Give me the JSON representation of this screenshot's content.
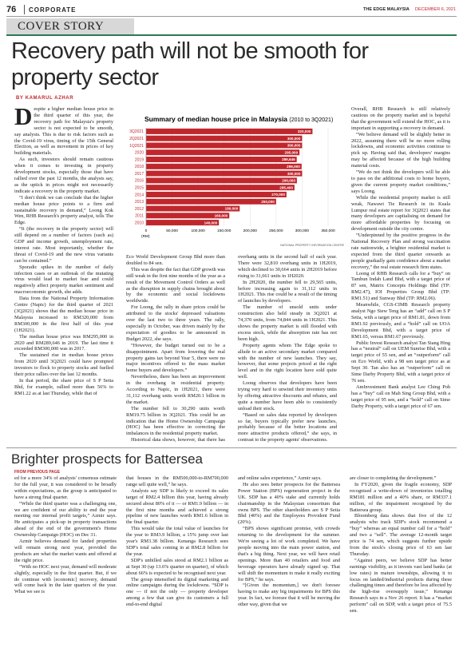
{
  "header": {
    "page_number": "76",
    "section": "CORPORATE",
    "publication": "THE EDGE MALAYSIA",
    "date": "DECEMBER 6, 2021"
  },
  "article": {
    "kicker": "COVER STORY",
    "title": "Recovery path will not be smooth for property sector",
    "byline": "BY KAMARUL AZHAR",
    "columns": [
      [
        "Despite a higher median house price in the third quarter of this year, the recovery path for Malaysia's property sector is not expected to be smooth, say analysts. This is due to risk factors such as the Covid-19 virus, timing of the 15th General Election, as well as movement in prices of key building materials.",
        "As such, investors should remain cautious when it comes to investing in property development stocks, especially those that have rallied over the past 12 months, the analysts say, as the uptick in prices might not necessarily indicate a recovery in the property market.",
        "“I don't think we can conclude that the higher median house price points to a firm and sustainable recovery in demand,” Loong Kok Wen, RHB Research's property analyst, tells The Edge.",
        "“It (the recovery in the property sector) will still depend on a number of factors (such as) GDP and income growth, unemployment rate, interest rate. Most importantly, whether the threat of Covid-19 and the new virus variants can be contained.”",
        "Sporadic spikes in the number of daily infection cases or an outbreak of the mutating virus would lead to market fear and could negatively affect property market sentiment and macroeconomic growth, she adds.",
        "Data from the National Property Information Centre (Napic) for the third quarter of 2021 (3Q2021) shows that the median house price in Malaysia increased to RM320,000 from RM300,000 in the first half of this year (1H2021).",
        "The median house price was RM295,000 in 2020 and RM289,646 in 2019. The last time it exceeded RM300,000 was in 2017.",
        "The sustained rise in median house prices from 2020 until 3Q2021 could have prompted investors to flock to property stocks and fuelled their price rallies over the last 12 months.",
        "In that period, the share price of S P Setia Bhd, for example, rallied more than 56% to RM1.22 as at last Thursday, while that of"
      ],
      [
        "Eco World Development Group Bhd more than doubled to 84 sen.",
        "This was despite the fact that GDP growth was still weak in the first nine months of the year as a result of the Movement Control Orders as well as the disruption in supply chains brought about by the economic and social lockdowns worldwide.",
        "For Loong, the rally in share prices could be attributed to the stocks' depressed valuations over the last two to three years. The rally, especially in October, was driven mainly by the expectation of goodies to be announced in Budget 2022, she says.",
        "“However, the budget turned out to be a disappointment. Apart from lowering the real property gains tax beyond Year 5, there were no major incentives offered to the mass market home buyers and developers.”",
        "Nevertheless, there has been an improvement in the overhang in residential property. According to Napic, in 1H2021, there were 31,112 overhang units worth RM20.1 billion in the market.",
        "The number fell to 30,290 units worth RM19.75 billion in 3Q2021. This could be an indication that the Home Ownership Campaign (HOC) has been effective in correcting the imbalances in the residential property market.",
        "Historical data shows, however, that there has been a decline in the number of"
      ],
      [
        "overhang units in the second half of each year. There were 32,810 overhang units in 1H2019, which declined to 30,664 units in 2H2019 before rising to 31,661 units in 1H2020.",
        "In 2H2020, the number fell to 29,565 units, before increasing again to 31,112 units in 1H2021. This rise could be a result of the timing of launches by developers.",
        "The number of unsold units under construction also held steady in 3Q2021 at 74,370 units, from 74,844 units in 1H2021. This shows the property market is still flooded with excess stock, while the absorption rate has not been high.",
        "Property agents whom The Edge spoke to allude to an active secondary market compared with the number of new launches. They say, however, that some projects priced at the right level and in the right location have sold quite well.",
        "Loong observes that developers have been trying very hard to unwind their inventory units by offering attractive discounts and rebates, and quite a number have been able to consistently unload their stock.",
        "“Based on sales data reported by developers so far, buyers typically prefer new launches, probably because of the better locations and more attractive products offered,” she says, in contrast to the property agents' observations."
      ],
      [
        "Overall, RHB Research is still relatively cautious on the property market and is hopeful that the government will extend the HOC, as it is important in supporting a recovery in demand.",
        "“We believe demand will be slightly better in 2022, assuming there will be no more rolling lockdowns, and economic activities continue to pick up. Having said that, developers' margins may be affected because of the high building material costs.",
        "“We do not think the developers will be able to pass on the additional costs to home buyers, given the current property market conditions,” says Loong.",
        "While the residential property market is still weak, Nawawi Tie Research in its Kuala Lumpur real estate report for 3Q2021 states that many developers are capitalising on demand for more affordable properties by focusing on development outside the city centre.",
        "“Underpinned by the positive progress in the National Recovery Plan and strong vaccination rate nationwide, a brighter residential market is expected from the third quarter onwards as people gradually gain confidence about a market recovery,” the real estate research firm states.",
        "Loong of RHB Research calls for a “buy” on Tambun Indah Land Bhd, with a target price of 87 sen, Matrix Concepts Holdings Bhd (TP: RM2.47), IOI Properties Group Bhd (TP: RM1.51) and Sunway Bhd (TP: RM2.06).",
        "Meanwhile, CGS-CIMB Research property analyst Ngo Siew Teng has an “add” call on S P Setia, with a target price of RM1.81, down from RM1.92 previously, and a “hold” call on UOA Development Bhd, with a target price of RM1.65, versus RM1.67 previously.",
        "Public Invest Research analyst Tan Siang Hing has a “neutral” call on UEM Sunrise Bhd, with a target price of 55 sen, and an “outperform” call on Eco World, with a 98 sen target price as at Sept 30. Tan also has an “outperform” call on Sime Darby Property Bhd, with a target price of 76 sen.",
        "AmInvestment Bank analyst Lee Ching Poh has a “buy” call on Mah Sing Group Bhd, with a target price of 95 sen, and a “hold” call on Sime Darby Property, with a target price of 67 sen."
      ]
    ]
  },
  "chart": {
    "type": "bar",
    "title": "Summary of median house price in Malaysia",
    "subtitle": "(2010 to 3Q2021)",
    "color": "#c0272d",
    "categories": [
      "3Q2021",
      "2Q2021",
      "1Q2021",
      "2020",
      "2019",
      "2018",
      "2017",
      "2016",
      "2015",
      "2014",
      "2013",
      "2012",
      "2011",
      "2010"
    ],
    "values": [
      320000,
      300000,
      300000,
      295000,
      289646,
      299000,
      300000,
      290000,
      285400,
      270000,
      250000,
      180000,
      160000,
      140000
    ],
    "value_labels": [
      "320,000",
      "300,000",
      "300,000",
      "295,000",
      "289,646",
      "299,000",
      "300,000",
      "290,000",
      "285,400",
      "270,000",
      "250,000",
      "180,000",
      "160,000",
      "140,000"
    ],
    "xlim": [
      0,
      350000
    ],
    "xticks": [
      0,
      {
        "value": 50000,
        "label": "50,000"
      },
      {
        "value": 100000,
        "label": "100,000"
      },
      {
        "value": 150000,
        "label": "150,000"
      },
      {
        "value": 200000,
        "label": "200,000"
      },
      {
        "value": 250000,
        "label": "250,000"
      },
      {
        "value": 300000,
        "label": "300,000"
      },
      {
        "value": 350000,
        "label": "350,000"
      }
    ],
    "unit": "(RM)",
    "source": "NATIONAL PROPERTY INFORMATION CENTRE"
  },
  "second": {
    "title": "Brighter prospects for Battersea",
    "kicker": "FROM PREVIOUS PAGE",
    "columns": [
      [
        "ed for a mere 34% of analysts' consensus estimate for the full year, it was considered to be broadly within expectations, as the group is anticipated to have a strong final quarter.",
        "“While the third quarter was a challenging one, we are confident of our ability to end the year meeting our internal profit targets,” Azmir says. He anticipates a pick-up in property transactions ahead of the end of the government's Home Ownership Campaign (HOC) on Dec 31.",
        "Azmir believes demand for landed properties will remain strong next year, provided the products are what the market wants and offered at the right price.",
        "“With no HOC next year, demand will moderate slightly, especially in the first quarter. But, if we do continue with [economic] recovery, demand will come back in the later quarters of the year. What we see is"
      ],
      [
        "that houses in the RM500,000-to-RM700,000 range sell quite well,” he says.",
        "Analysts say SDP is likely to exceed its sales target of RM2.4 billion this year, having already secured about 80% of it — or RM1.9 billion — in the first nine months and achieved a strong pipeline of new launches worth RM1.6 billion in the final quarter.",
        "This would take the total value of launches for the year to RM3.9 billion, a 15% jump over last year's RM3.38 billion. Kenanga Research sees SDP's total sales coming in at RM2.8 billion for the year.",
        "SDP's unbilled sales stood at RM2.1 billion as at Sept 30 (up 13.6% quarter on quarter), of which about 66% is expected to be recognised next year.",
        "The group intensified its digital marketing and online campaigns during the lockdowns. “SDP is one — if not the only — property developer among a few that can give its customers a full end-to-end digital"
      ],
      [
        "and online sales experience,” Azmir says.",
        "He also sees better prospects for the Battersea Power Station (BPS) regeneration project in the UK. SDP has a 40% stake and currently holds chairmanship in the Malaysian consortium that owns BPS. The other shareholders are S P Setia Bhd (40%) and the Employees Provident Fund (20%).",
        "“BPS shows significant promise, with crowds returning to the development for the summer. We're seeing a lot of work completed. We have people moving into the main power station, and that's a big thing. Next year, we will have retail openings. More than 40 retailers and food and beverage operators have already signed up. That will shift the momentum to make it really exciting for BPS,” he says.",
        "“[Given the momentum,] we don't foresee having to make any big impairments for BPS this year. In fact, we foresee that it will be moving the other way, given that we"
      ],
      [
        "are closer to completing the development.”",
        "In FY2020, given the fragile economy, SDP recognised a write-down of inventories totalling RM181 million and a 40% share, or RM337.1 million, of the impairment recognised by the Battersea group.",
        "Bloomberg data shows that five of the 12 analysts who track SDP's stock recommend a “buy” whereas an equal number call for a “hold” and two a “sell”. The average 12-month target price is 74 sen, which suggests further upside from the stock's closing price of 63 sen last Thursday.",
        "“Against peers, we believe SDP has better earnings visibility, as it invests vast land banks (at low rates) in mature townships, allowing it to focus on landed/industrial products during these challenging times and therefore be less affected by the high-rise oversupply issue,” Kenanga Research says in a Nov 26 report. It has a “market perform” call on SDP, with a target price of 75.5 sen."
      ]
    ]
  }
}
